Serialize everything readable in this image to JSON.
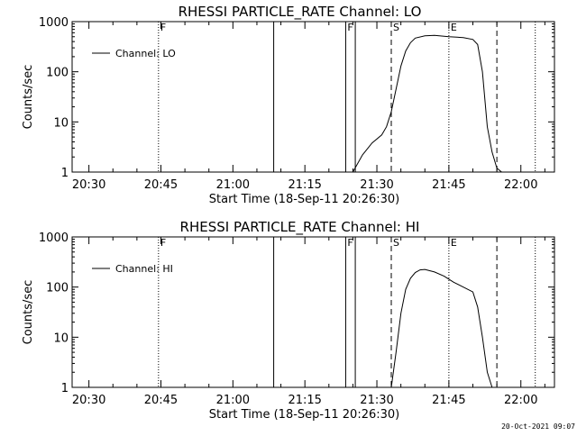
{
  "stamp": "20-Oct-2021 09:07",
  "chart_data": [
    {
      "type": "line",
      "title": "RHESSI PARTICLE_RATE Channel: LO",
      "xlabel": "Start Time (18-Sep-11 20:26:30)",
      "ylabel": "Counts/sec",
      "y_scale": "log",
      "xlim": [
        "20:26:30",
        "22:07"
      ],
      "ylim": [
        1,
        1000
      ],
      "x_ticks": [
        "20:30",
        "20:45",
        "21:00",
        "21:15",
        "21:30",
        "21:45",
        "22:00"
      ],
      "y_ticks": [
        "1",
        "10",
        "100",
        "1000"
      ],
      "legend": "top-left",
      "series": [
        {
          "name": "Channel: LO",
          "x": [
            "21:25",
            "21:27",
            "21:29",
            "21:31",
            "21:32",
            "21:33",
            "21:34",
            "21:35",
            "21:36",
            "21:37",
            "21:38",
            "21:40",
            "21:42",
            "21:45",
            "21:48",
            "21:50",
            "21:51",
            "21:52",
            "21:53",
            "21:54",
            "21:55",
            "21:56"
          ],
          "values": [
            1,
            2.2,
            3.8,
            5.5,
            8,
            16,
            45,
            130,
            260,
            380,
            470,
            520,
            530,
            500,
            480,
            440,
            350,
            100,
            8,
            2.5,
            1.2,
            1
          ]
        }
      ],
      "markers": [
        {
          "label": "F",
          "time": "20:44:30",
          "style": "dotted"
        },
        {
          "time": "21:08:30",
          "style": "solid"
        },
        {
          "label": "F",
          "time": "21:23:30",
          "style": "solid"
        },
        {
          "time": "21:25:30",
          "style": "solid"
        },
        {
          "label": "S",
          "time": "21:33",
          "style": "dashed"
        },
        {
          "label": "E",
          "time": "21:45",
          "style": "dotted"
        },
        {
          "time": "21:55",
          "style": "dashed"
        },
        {
          "time": "22:03",
          "style": "dotted"
        }
      ]
    },
    {
      "type": "line",
      "title": "RHESSI PARTICLE_RATE Channel: HI",
      "xlabel": "Start Time (18-Sep-11 20:26:30)",
      "ylabel": "Counts/sec",
      "y_scale": "log",
      "xlim": [
        "20:26:30",
        "22:07"
      ],
      "ylim": [
        1,
        1000
      ],
      "x_ticks": [
        "20:30",
        "20:45",
        "21:00",
        "21:15",
        "21:30",
        "21:45",
        "22:00"
      ],
      "y_ticks": [
        "1",
        "10",
        "100",
        "1000"
      ],
      "legend": "top-left",
      "series": [
        {
          "name": "Channel: HI",
          "x": [
            "21:33",
            "21:34",
            "21:35",
            "21:36",
            "21:37",
            "21:38",
            "21:39",
            "21:40",
            "21:42",
            "21:44",
            "21:46",
            "21:48",
            "21:50",
            "21:51",
            "21:52",
            "21:53",
            "21:54"
          ],
          "values": [
            1,
            5,
            30,
            90,
            150,
            195,
            220,
            225,
            200,
            165,
            125,
            100,
            80,
            40,
            10,
            2,
            1
          ]
        }
      ],
      "markers": [
        {
          "label": "F",
          "time": "20:44:30",
          "style": "dotted"
        },
        {
          "time": "21:08:30",
          "style": "solid"
        },
        {
          "label": "F",
          "time": "21:23:30",
          "style": "solid"
        },
        {
          "time": "21:25:30",
          "style": "solid"
        },
        {
          "label": "S",
          "time": "21:33",
          "style": "dashed"
        },
        {
          "label": "E",
          "time": "21:45",
          "style": "dotted"
        },
        {
          "time": "21:55",
          "style": "dashed"
        },
        {
          "time": "22:03",
          "style": "dotted"
        }
      ]
    }
  ]
}
